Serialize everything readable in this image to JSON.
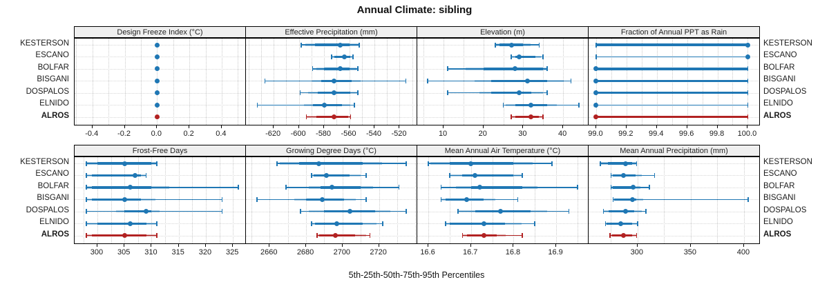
{
  "title": "Annual Climate: sibling",
  "footer": "5th-25th-50th-75th-95th Percentiles",
  "sites": [
    "KESTERSON",
    "ESCANO",
    "BOLFAR",
    "BISGANI",
    "DOSPALOS",
    "ELNIDO",
    "ALROS"
  ],
  "highlight_site": "ALROS",
  "colors": {
    "series": "#1f77b4",
    "highlight": "#b22222",
    "strip_bg": "#efefef",
    "grid": "#c9c9c9",
    "border": "#000000",
    "text": "#1a1a1a"
  },
  "chart_data": {
    "type": "dot-whisker percentile trellis (2 rows x 4 panels)",
    "percentiles": [
      "5th",
      "25th",
      "50th",
      "75th",
      "95th"
    ],
    "categories": [
      "KESTERSON",
      "ESCANO",
      "BOLFAR",
      "BISGANI",
      "DOSPALOS",
      "ELNIDO",
      "ALROS"
    ],
    "legend_position": "none",
    "grid": "dotted",
    "panels": [
      {
        "title": "Design Freeze Index (°C)",
        "xlim": [
          -0.51,
          0.55
        ],
        "ticks": [
          -0.4,
          -0.2,
          0.0,
          0.2,
          0.4
        ],
        "tick_labels": [
          "-0.4",
          "-0.2",
          "0.0",
          "0.2",
          "0.4"
        ],
        "values": [
          [
            0,
            0,
            0,
            0,
            0
          ],
          [
            0,
            0,
            0,
            0,
            0
          ],
          [
            0,
            0,
            0,
            0,
            0
          ],
          [
            0,
            0,
            0,
            0,
            0
          ],
          [
            0,
            0,
            0,
            0,
            0
          ],
          [
            0,
            0,
            0,
            0,
            0
          ],
          [
            0,
            0,
            0,
            0,
            0
          ]
        ]
      },
      {
        "title": "Effective Precipitation (mm)",
        "xlim": [
          -642,
          -506
        ],
        "ticks": [
          -620,
          -600,
          -580,
          -560,
          -540,
          -520
        ],
        "tick_labels": [
          "-620",
          "-600",
          "-580",
          "-560",
          "-540",
          "-520"
        ],
        "values": [
          [
            -598,
            -587,
            -567,
            -560,
            -552
          ],
          [
            -574,
            -572,
            -564,
            -559,
            -557
          ],
          [
            -589,
            -580,
            -567,
            -560,
            -553
          ],
          [
            -627,
            -582,
            -572,
            -558,
            -515
          ],
          [
            -599,
            -585,
            -572,
            -559,
            -553
          ],
          [
            -633,
            -589,
            -580,
            -566,
            -556
          ],
          [
            -594,
            -586,
            -572,
            -561,
            -559
          ]
        ]
      },
      {
        "title": "Elevation (m)",
        "xlim": [
          3.4,
          46.4
        ],
        "ticks": [
          10,
          20,
          30,
          40
        ],
        "tick_labels": [
          "10",
          "20",
          "30",
          "40"
        ],
        "values": [
          [
            23,
            24,
            27,
            30,
            34
          ],
          [
            27,
            28,
            29,
            33,
            35
          ],
          [
            11,
            20,
            28,
            35,
            36
          ],
          [
            6,
            22,
            31,
            36,
            42
          ],
          [
            11,
            22,
            29,
            32,
            36
          ],
          [
            25,
            28,
            32,
            36,
            44
          ],
          [
            27,
            28,
            32,
            34,
            35
          ]
        ]
      },
      {
        "title": "Fraction of Annual PPT as Rain",
        "xlim": [
          98.95,
          100.08
        ],
        "ticks": [
          99.0,
          99.2,
          99.4,
          99.6,
          99.8,
          100.0
        ],
        "tick_labels": [
          "99.0",
          "99.2",
          "99.4",
          "99.6",
          "99.8",
          "100.0"
        ],
        "values": [
          [
            99,
            99,
            100,
            100,
            100
          ],
          [
            99,
            100,
            100,
            100,
            100
          ],
          [
            99,
            99,
            99,
            100,
            100
          ],
          [
            99,
            99,
            99,
            100,
            100
          ],
          [
            99,
            99,
            99,
            100,
            100
          ],
          [
            99,
            99,
            99,
            99,
            100
          ],
          [
            99,
            99,
            99,
            100,
            100
          ]
        ]
      },
      {
        "title": "Frost-Free Days",
        "xlim": [
          295.8,
          327.4
        ],
        "ticks": [
          300,
          305,
          310,
          315,
          320,
          325
        ],
        "tick_labels": [
          "300",
          "305",
          "310",
          "315",
          "320",
          "325"
        ],
        "values": [
          [
            298,
            300,
            305,
            310,
            311
          ],
          [
            298,
            299,
            307,
            308,
            309
          ],
          [
            298,
            299,
            306,
            310,
            326
          ],
          [
            298,
            299,
            305,
            308,
            323
          ],
          [
            298,
            305,
            309,
            310,
            323
          ],
          [
            298,
            300,
            306,
            309,
            311
          ],
          [
            298,
            299,
            305,
            309,
            311
          ]
        ]
      },
      {
        "title": "Growing Degree Days (°C)",
        "xlim": [
          2647,
          2741
        ],
        "ticks": [
          2660,
          2680,
          2700,
          2720
        ],
        "tick_labels": [
          "2660",
          "2680",
          "2700",
          "2720"
        ],
        "values": [
          [
            2664,
            2676,
            2687,
            2711,
            2735
          ],
          [
            2683,
            2684,
            2691,
            2704,
            2713
          ],
          [
            2669,
            2688,
            2694,
            2710,
            2731
          ],
          [
            2653,
            2680,
            2689,
            2701,
            2713
          ],
          [
            2677,
            2690,
            2704,
            2718,
            2735
          ],
          [
            2683,
            2685,
            2697,
            2711,
            2722
          ],
          [
            2686,
            2687,
            2696,
            2707,
            2715
          ]
        ]
      },
      {
        "title": "Mean Annual Air Temperature (°C)",
        "xlim": [
          16.574,
          16.976
        ],
        "ticks": [
          16.6,
          16.7,
          16.8,
          16.9
        ],
        "tick_labels": [
          "16.6",
          "16.7",
          "16.8",
          "16.9"
        ],
        "values": [
          [
            16.6,
            16.65,
            16.7,
            16.8,
            16.89
          ],
          [
            16.65,
            16.68,
            16.71,
            16.8,
            16.82
          ],
          [
            16.63,
            16.7,
            16.72,
            16.82,
            16.95
          ],
          [
            16.63,
            16.64,
            16.69,
            16.73,
            16.81
          ],
          [
            16.67,
            16.71,
            16.77,
            16.84,
            16.93
          ],
          [
            16.64,
            16.65,
            16.73,
            16.78,
            16.85
          ],
          [
            16.68,
            16.69,
            16.73,
            16.76,
            16.82
          ]
        ]
      },
      {
        "title": "Mean Annual Precipitation (mm)",
        "xlim": [
          254,
          415
        ],
        "ticks": [
          300,
          350,
          400
        ],
        "tick_labels": [
          "300",
          "350",
          "400"
        ],
        "values": [
          [
            265,
            272,
            289,
            295,
            299
          ],
          [
            275,
            277,
            287,
            298,
            316
          ],
          [
            275,
            277,
            296,
            297,
            311
          ],
          [
            277,
            278,
            295,
            299,
            404
          ],
          [
            268,
            273,
            289,
            297,
            308
          ],
          [
            270,
            271,
            284,
            295,
            300
          ],
          [
            274,
            276,
            287,
            295,
            299
          ]
        ]
      }
    ]
  }
}
